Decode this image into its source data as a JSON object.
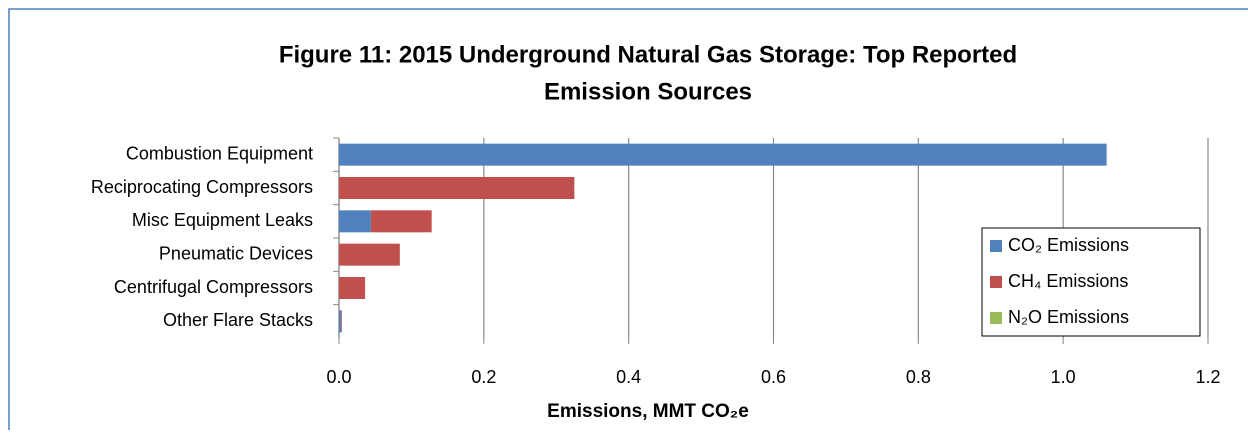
{
  "chart_data": {
    "type": "stacked_barh",
    "title": [
      "Figure 11: 2015 Underground Natural Gas Storage:  Top Reported",
      "Emission Sources"
    ],
    "xlabel": "Emissions, MMT CO₂e",
    "categories": [
      "Combustion Equipment",
      "Reciprocating Compressors",
      "Misc Equipment Leaks",
      "Pneumatic Devices",
      "Centrifugal Compressors",
      "Other Flare Stacks"
    ],
    "series": [
      {
        "name": "CO₂ Emissions",
        "color": "#4f81bd",
        "values": [
          1.06,
          0,
          0.044,
          0,
          0,
          0.003
        ]
      },
      {
        "name": "CH₄ Emissions",
        "color": "#c0504d",
        "values": [
          0,
          0.325,
          0.084,
          0.084,
          0.036,
          0.001
        ]
      },
      {
        "name": "N₂O Emissions",
        "color": "#9bbb59",
        "values": [
          0,
          0,
          0,
          0,
          0,
          0
        ]
      }
    ],
    "xlim": [
      0,
      1.2
    ],
    "xticks": [
      {
        "value": 0,
        "label": "0.0"
      },
      0.2,
      0.4,
      0.6,
      0.8,
      {
        "value": 1,
        "label": "1.0"
      },
      1.2
    ],
    "grid": true,
    "legend": "lower right"
  }
}
